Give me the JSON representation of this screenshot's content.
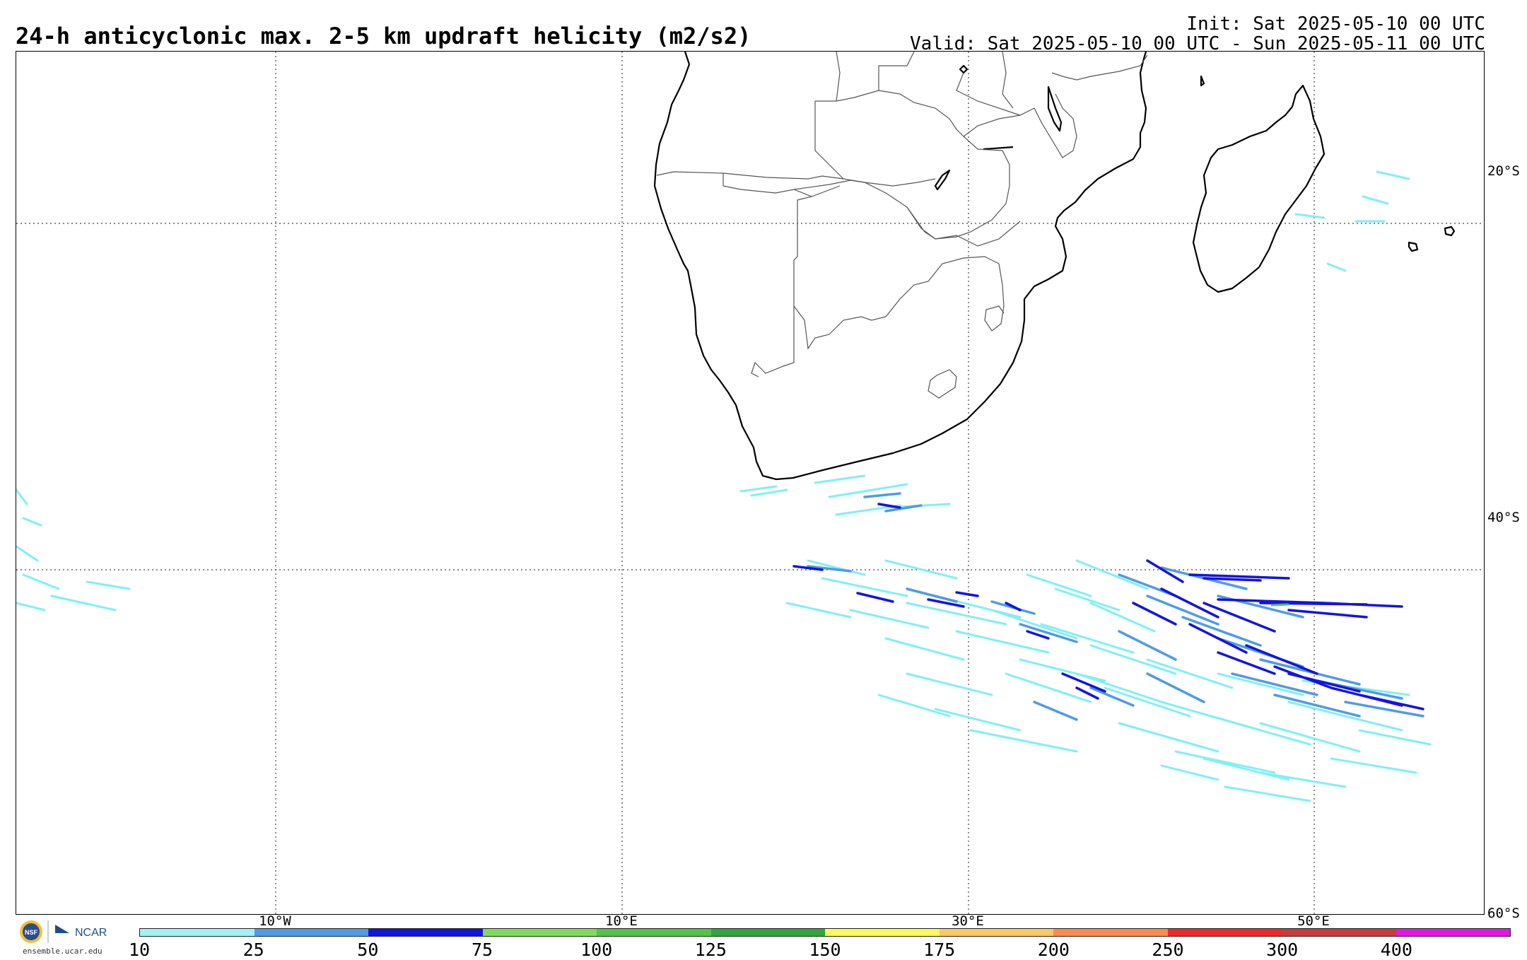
{
  "header": {
    "title": "24-h anticyclonic max. 2-5 km updraft helicity (m2/s2)",
    "init": "Init: Sat 2025-05-10 00 UTC",
    "valid": "Valid: Sat 2025-05-10 00 UTC - Sun 2025-05-11 00 UTC"
  },
  "map": {
    "lat_labels": [
      "20°S",
      "40°S",
      "60°S"
    ],
    "lon_labels": [
      "10°W",
      "10°E",
      "30°E",
      "50°E"
    ],
    "colors": {
      "coast": "#000000",
      "border": "#555555",
      "grid": "#444444"
    }
  },
  "colorbar": {
    "labels": [
      "10",
      "25",
      "50",
      "75",
      "100",
      "125",
      "150",
      "175",
      "200",
      "250",
      "300",
      "400"
    ],
    "colors": [
      "#9ff3f5",
      "#4f9be8",
      "#1414e0",
      "#7edc5a",
      "#52c446",
      "#2ea83a",
      "#fafa5a",
      "#fcc864",
      "#fa8c50",
      "#f02828",
      "#c83c3c",
      "#e614e6"
    ]
  },
  "footer": {
    "logo_text_nsf": "NSF",
    "logo_text_ncar": "NCAR",
    "url": "ensemble.ucar.edu"
  }
}
